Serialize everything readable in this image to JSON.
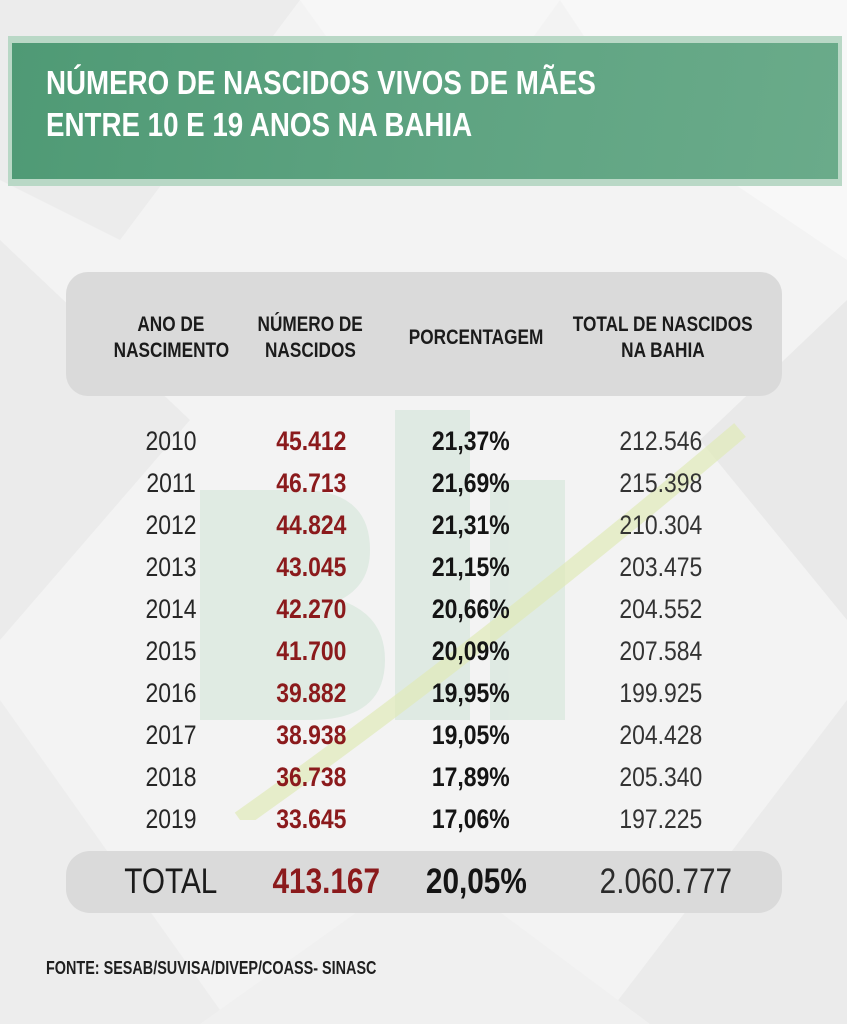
{
  "title": {
    "line1": "NÚMERO DE NASCIDOS VIVOS DE MÃES",
    "line2": "ENTRE 10 E 19 ANOS NA BAHIA"
  },
  "headers": {
    "year": [
      "ANO DE",
      "NASCIMENTO"
    ],
    "births": [
      "NÚMERO DE",
      "NASCIDOS"
    ],
    "percent": [
      "PORCENTAGEM"
    ],
    "total": [
      "TOTAL DE NASCIDOS",
      "NA BAHIA"
    ]
  },
  "chart_data": {
    "type": "table",
    "columns": [
      "ANO DE NASCIMENTO",
      "NÚMERO DE NASCIDOS",
      "PORCENTAGEM",
      "TOTAL DE NASCIDOS NA BAHIA"
    ],
    "rows": [
      [
        "2010",
        "45.412",
        "21,37%",
        "212.546"
      ],
      [
        "2011",
        "46.713",
        "21,69%",
        "215.398"
      ],
      [
        "2012",
        "44.824",
        "21,31%",
        "210.304"
      ],
      [
        "2013",
        "43.045",
        "21,15%",
        "203.475"
      ],
      [
        "2014",
        "42.270",
        "20,66%",
        "204.552"
      ],
      [
        "2015",
        "41.700",
        "20,09%",
        "207.584"
      ],
      [
        "2016",
        "39.882",
        "19,95%",
        "199.925"
      ],
      [
        "2017",
        "38.938",
        "19,05%",
        "204.428"
      ],
      [
        "2018",
        "36.738",
        "17,89%",
        "205.340"
      ],
      [
        "2019",
        "33.645",
        "17,06%",
        "197.225"
      ]
    ],
    "total": [
      "TOTAL",
      "413.167",
      "20,05%",
      "2.060.777"
    ]
  },
  "source": "FONTE: SESAB/SUVISA/DIVEP/COASS- SINASC",
  "colors": {
    "banner": "#5fa482",
    "banner_border": "#b9d8c6",
    "births_text": "#8b1a1c",
    "header_box": "#dadada"
  }
}
